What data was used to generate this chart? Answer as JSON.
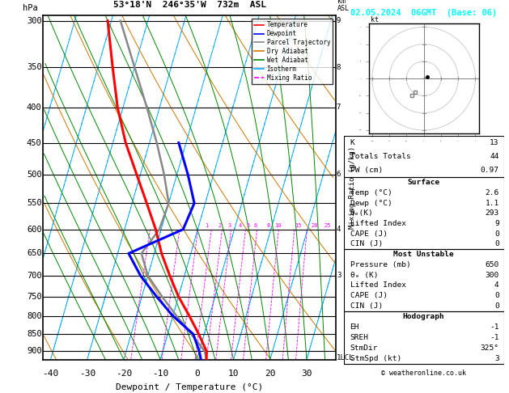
{
  "title_left": "53°18'N  246°35'W  732m  ASL",
  "title_right": "02.05.2024  06GMT  (Base: 06)",
  "xlabel": "Dewpoint / Temperature (°C)",
  "pressure_major": [
    300,
    350,
    400,
    450,
    500,
    550,
    600,
    650,
    700,
    750,
    800,
    850,
    900
  ],
  "xlim": [
    -42,
    38
  ],
  "xticks": [
    -40,
    -30,
    -20,
    -10,
    0,
    10,
    20,
    30
  ],
  "pmin": 295,
  "pmax": 925,
  "skew": 27,
  "temp_profile": {
    "pressure": [
      925,
      900,
      850,
      800,
      750,
      700,
      650,
      600,
      550,
      500,
      450,
      400,
      350,
      300
    ],
    "temp": [
      2.6,
      2.0,
      -1.5,
      -5.5,
      -10.0,
      -14.0,
      -18.0,
      -21.5,
      -26.0,
      -31.0,
      -36.5,
      -41.5,
      -46.0,
      -51.0
    ]
  },
  "dewp_profile": {
    "pressure": [
      925,
      900,
      850,
      800,
      750,
      700,
      650,
      600,
      550,
      500,
      450
    ],
    "temp": [
      1.1,
      0.0,
      -3.0,
      -10.0,
      -16.0,
      -22.0,
      -27.0,
      -14.0,
      -13.0,
      -17.0,
      -22.0
    ]
  },
  "parcel_profile": {
    "pressure": [
      925,
      900,
      850,
      800,
      750,
      700,
      650,
      600,
      550,
      500,
      450,
      400,
      350,
      300
    ],
    "temp": [
      2.6,
      1.5,
      -3.5,
      -9.0,
      -14.5,
      -20.0,
      -23.5,
      -20.5,
      -20.0,
      -23.5,
      -28.0,
      -33.5,
      -40.0,
      -47.5
    ]
  },
  "km_labels": [
    {
      "p": 920,
      "label": "1",
      "suffix": "LCL"
    },
    {
      "p": 700,
      "label": "3",
      "suffix": ""
    },
    {
      "p": 600,
      "label": "4",
      "suffix": ""
    },
    {
      "p": 500,
      "label": "6",
      "suffix": ""
    },
    {
      "p": 400,
      "label": "7",
      "suffix": ""
    },
    {
      "p": 350,
      "label": "8",
      "suffix": ""
    },
    {
      "p": 300,
      "label": "9",
      "suffix": ""
    }
  ],
  "mixing_ratio_values": [
    1,
    2,
    3,
    4,
    5,
    6,
    8,
    10,
    15,
    20,
    25
  ],
  "mixing_ratio_label_p": 600,
  "stats": {
    "K": "13",
    "Totals Totals": "44",
    "PW (cm)": "0.97",
    "surf_temp": "2.6",
    "surf_dewp": "1.1",
    "surf_theta_e": "293",
    "surf_li": "9",
    "surf_cape": "0",
    "surf_cin": "0",
    "mu_pres": "650",
    "mu_theta_e": "300",
    "mu_li": "4",
    "mu_cape": "0",
    "mu_cin": "0",
    "hodo_eh": "-1",
    "hodo_sreh": "-1",
    "hodo_stmdir": "325°",
    "hodo_stmspd": "3"
  },
  "colors": {
    "temperature": "#ff0000",
    "dewpoint": "#0000ff",
    "parcel": "#888888",
    "dry_adiabat": "#cc7700",
    "wet_adiabat": "#008800",
    "isotherm": "#00aaff",
    "mixing_ratio": "#ff00ff"
  },
  "legend_items": [
    {
      "label": "Temperature",
      "color": "#ff0000",
      "ls": "-"
    },
    {
      "label": "Dewpoint",
      "color": "#0000ff",
      "ls": "-"
    },
    {
      "label": "Parcel Trajectory",
      "color": "#888888",
      "ls": "-"
    },
    {
      "label": "Dry Adiabat",
      "color": "#cc7700",
      "ls": "-"
    },
    {
      "label": "Wet Adiabat",
      "color": "#008800",
      "ls": "-"
    },
    {
      "label": "Isotherm",
      "color": "#00aaff",
      "ls": "-"
    },
    {
      "label": "Mixing Ratio",
      "color": "#ff00ff",
      "ls": "--"
    }
  ]
}
